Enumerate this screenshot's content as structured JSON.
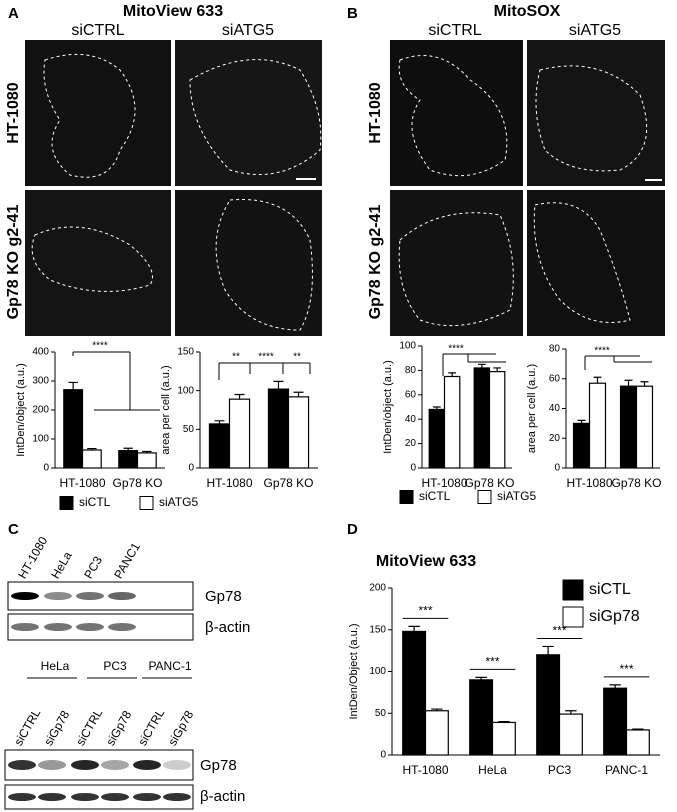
{
  "panel_labels": [
    "A",
    "B",
    "C",
    "D"
  ],
  "panel_a": {
    "title": "MitoView 633",
    "columns": [
      "siCTRL",
      "siATG5"
    ],
    "rows": [
      "HT-1080",
      "Gp78 KO g2-41"
    ]
  },
  "panel_b": {
    "title": "MitoSOX",
    "columns": [
      "siCTRL",
      "siATG5"
    ],
    "rows": [
      "HT-1080",
      "Gp78 KO g2-41"
    ]
  },
  "panel_c": {
    "top_lanes": [
      "HT-1080",
      "HeLa",
      "PC3",
      "PANC1"
    ],
    "top_bands": [
      "Gp78",
      "β-actin"
    ],
    "groups": [
      "HeLa",
      "PC3",
      "PANC-1"
    ],
    "bottom_lanes": [
      "siCTRL",
      "siGp78",
      "siCTRL",
      "siGp78",
      "siCTRL",
      "siGp78"
    ],
    "bottom_bands": [
      "Gp78",
      "β-actin"
    ]
  },
  "chart_data": [
    {
      "type": "bar",
      "ylabel": "IntDen/object (a.u.)",
      "categories": [
        "HT-1080",
        "Gp78 KO"
      ],
      "series": [
        {
          "name": "siCTL",
          "color": "#000000",
          "values": [
            270,
            60
          ],
          "errors": [
            25,
            8
          ]
        },
        {
          "name": "siATG5",
          "color": "#ffffff",
          "values": [
            62,
            52
          ],
          "errors": [
            5,
            5
          ]
        }
      ],
      "ylim": [
        0,
        400
      ],
      "yticks": [
        0,
        100,
        200,
        300,
        400
      ],
      "annotations": [
        "****"
      ]
    },
    {
      "type": "bar",
      "ylabel": "area per cell (a.u.)",
      "categories": [
        "HT-1080",
        "Gp78 KO"
      ],
      "series": [
        {
          "color": "#000000",
          "values": [
            57,
            102
          ],
          "errors": [
            4,
            10
          ]
        },
        {
          "color": "#ffffff",
          "values": [
            89,
            92
          ],
          "errors": [
            6,
            6
          ]
        }
      ],
      "ylim": [
        0,
        150
      ],
      "yticks": [
        0,
        50,
        100,
        150
      ],
      "annotations": [
        "**",
        "****",
        "**"
      ]
    },
    {
      "type": "bar",
      "ylabel": "IntDen/object (a.u.)",
      "categories": [
        "HT-1080",
        "Gp78 KO"
      ],
      "series": [
        {
          "name": "siCTL",
          "color": "#000000",
          "values": [
            48,
            82
          ],
          "errors": [
            2,
            3
          ]
        },
        {
          "name": "siATG5",
          "color": "#ffffff",
          "values": [
            75,
            79
          ],
          "errors": [
            3,
            3
          ]
        }
      ],
      "ylim": [
        0,
        100
      ],
      "yticks": [
        0,
        20,
        40,
        60,
        80,
        100
      ],
      "annotations": [
        "****"
      ]
    },
    {
      "type": "bar",
      "ylabel": "area per cell (a.u.)",
      "categories": [
        "HT-1080",
        "Gp78 KO"
      ],
      "series": [
        {
          "color": "#000000",
          "values": [
            30,
            55
          ],
          "errors": [
            2,
            4
          ]
        },
        {
          "color": "#ffffff",
          "values": [
            57,
            55
          ],
          "errors": [
            4,
            3
          ]
        }
      ],
      "ylim": [
        0,
        80
      ],
      "yticks": [
        0,
        20,
        40,
        60,
        80
      ],
      "annotations": [
        "****"
      ]
    },
    {
      "type": "bar",
      "title": "MitoView 633",
      "ylabel": "IntDen/Object (a.u.)",
      "categories": [
        "HT-1080",
        "HeLa",
        "PC3",
        "PANC-1"
      ],
      "series": [
        {
          "name": "siCTL",
          "color": "#000000",
          "values": [
            148,
            90,
            120,
            80
          ],
          "errors": [
            6,
            3,
            10,
            4
          ]
        },
        {
          "name": "siGp78",
          "color": "#ffffff",
          "values": [
            53,
            39,
            49,
            30
          ],
          "errors": [
            2,
            1,
            4,
            1
          ]
        }
      ],
      "ylim": [
        0,
        200
      ],
      "yticks": [
        0,
        50,
        100,
        150,
        200
      ],
      "annotations": [
        "***",
        "***",
        "***",
        "***"
      ]
    }
  ]
}
